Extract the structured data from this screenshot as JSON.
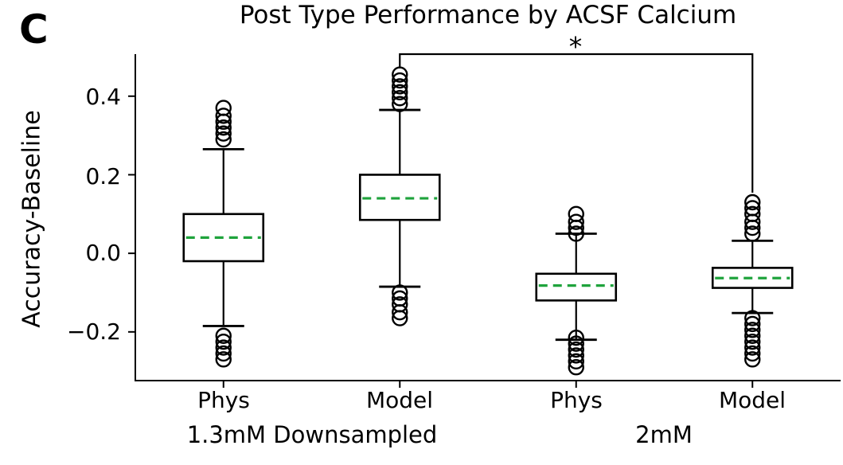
{
  "panel_label": "C",
  "chart_data": {
    "type": "box",
    "title": "Post Type Performance by ACSF Calcium",
    "ylabel": "Accuracy-Baseline",
    "xlabel": "",
    "grid": false,
    "ylim": [
      -0.324,
      0.507
    ],
    "yticks": [
      0.4,
      0.2,
      0.0,
      -0.2
    ],
    "ytick_labels": [
      "0.4",
      "0.2",
      "0.0",
      "−0.2"
    ],
    "colors": {
      "line": "#000000",
      "mean_line": "#1fa33c",
      "background": "#ffffff"
    },
    "group_labels": [
      {
        "label": "1.3mM Downsampled",
        "box_indices": [
          0,
          1
        ]
      },
      {
        "label": "2mM",
        "box_indices": [
          2,
          3
        ]
      }
    ],
    "boxes": [
      {
        "label": "Phys",
        "group": "1.3mM Downsampled",
        "q1": -0.02,
        "q3": 0.1,
        "mean": 0.04,
        "whisker_low": -0.185,
        "whisker_high": 0.265,
        "outliers_high": [
          0.29,
          0.305,
          0.32,
          0.335,
          0.35,
          0.37
        ],
        "outliers_low": [
          -0.21,
          -0.225,
          -0.24,
          -0.255,
          -0.27
        ]
      },
      {
        "label": "Model",
        "group": "1.3mM Downsampled",
        "q1": 0.085,
        "q3": 0.2,
        "mean": 0.14,
        "whisker_low": -0.085,
        "whisker_high": 0.365,
        "outliers_high": [
          0.38,
          0.395,
          0.41,
          0.425,
          0.44,
          0.455
        ],
        "outliers_low": [
          -0.1,
          -0.115,
          -0.13,
          -0.15,
          -0.165
        ]
      },
      {
        "label": "Phys",
        "group": "2mM",
        "q1": -0.12,
        "q3": -0.052,
        "mean": -0.082,
        "whisker_low": -0.22,
        "whisker_high": 0.05,
        "outliers_high": [
          0.05,
          0.065,
          0.08,
          0.1
        ],
        "outliers_low": [
          -0.215,
          -0.23,
          -0.245,
          -0.26,
          -0.275,
          -0.29
        ]
      },
      {
        "label": "Model",
        "group": "2mM",
        "q1": -0.088,
        "q3": -0.037,
        "mean": -0.063,
        "whisker_low": -0.152,
        "whisker_high": 0.032,
        "outliers_high": [
          0.05,
          0.065,
          0.08,
          0.1,
          0.115,
          0.13
        ],
        "outliers_low": [
          -0.165,
          -0.18,
          -0.195,
          -0.21,
          -0.225,
          -0.24,
          -0.255,
          -0.27
        ]
      }
    ],
    "significance": {
      "label": "*",
      "box_indices": [
        1,
        3
      ],
      "between": [
        "Model (1.3mM Downsampled)",
        "Model (2mM)"
      ]
    }
  }
}
